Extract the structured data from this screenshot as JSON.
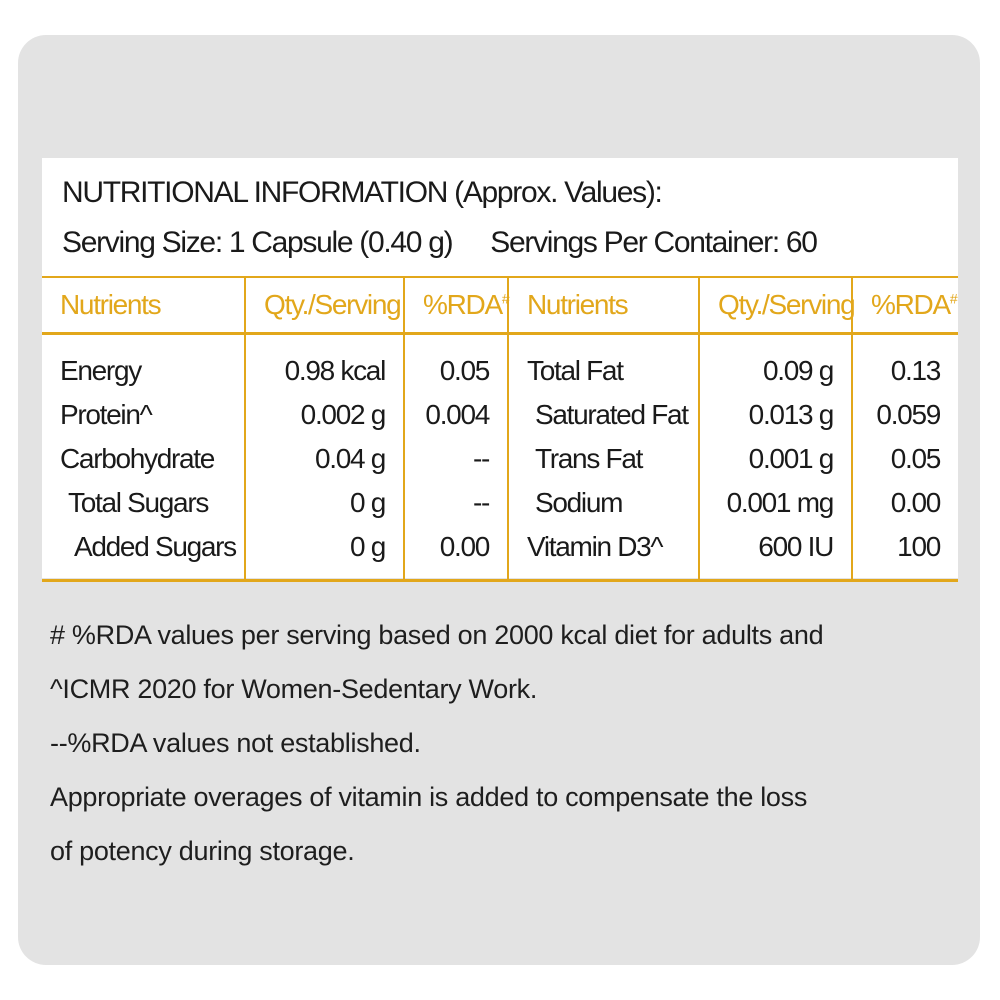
{
  "title": "NUTRITIONAL INFORMATION (Approx. Values):",
  "serving_size": "Serving Size: 1 Capsule (0.40 g)",
  "servings_per_container": "Servings Per Container: 60",
  "colors": {
    "accent": "#e2a71b",
    "background": "#e3e3e3"
  },
  "headers": {
    "nutrients": "Nutrients",
    "qty": "Qty./Serving",
    "rda": "%RDA",
    "rda_mark": "#"
  },
  "left_rows": [
    {
      "name": "Energy",
      "qty": "0.98 kcal",
      "rda": "0.05"
    },
    {
      "name": "Protein^",
      "qty": "0.002 g",
      "rda": "0.004"
    },
    {
      "name": "Carbohydrate",
      "qty": "0.04 g",
      "rda": "--"
    },
    {
      "name": "Total Sugars",
      "qty": "0 g",
      "rda": "--"
    },
    {
      "name": "Added Sugars",
      "qty": "0 g",
      "rda": "0.00"
    }
  ],
  "right_rows": [
    {
      "name": "Total Fat",
      "qty": "0.09 g",
      "rda": "0.13"
    },
    {
      "name": "Saturated Fat",
      "qty": "0.013 g",
      "rda": "0.059"
    },
    {
      "name": "Trans Fat",
      "qty": "0.001 g",
      "rda": "0.05"
    },
    {
      "name": "Sodium",
      "qty": "0.001 mg",
      "rda": "0.00"
    },
    {
      "name": "Vitamin D3^",
      "qty": "600 IU",
      "rda": "100"
    }
  ],
  "notes": [
    "# %RDA values per serving based on 2000 kcal diet for adults and",
    "^ICMR 2020 for Women-Sedentary Work.",
    "--%RDA values not established.",
    "Appropriate overages of vitamin is added to compensate the loss",
    "of potency during storage."
  ]
}
